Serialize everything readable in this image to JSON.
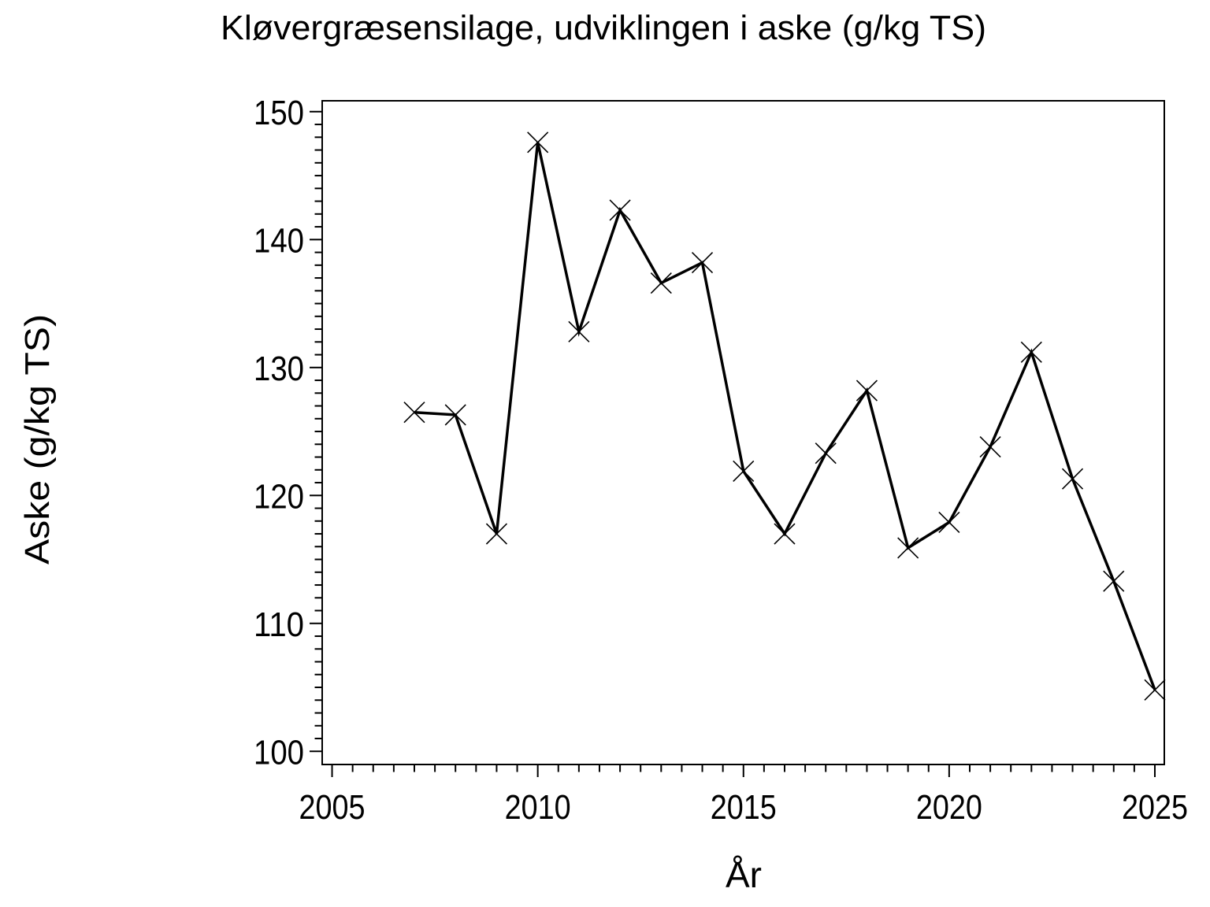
{
  "window": {
    "background": "#ffffff",
    "foreground": "#000000"
  },
  "chart_data": {
    "type": "line",
    "title": "Kløvergræsensilage, udviklingen i aske (g/kg TS)",
    "xlabel": "År",
    "ylabel": "Aske (g/kg TS)",
    "x": [
      2007,
      2008,
      2009,
      2010,
      2011,
      2012,
      2013,
      2014,
      2015,
      2016,
      2017,
      2018,
      2019,
      2020,
      2021,
      2022,
      2023,
      2024,
      2025
    ],
    "series": [
      {
        "name": "Aske (g/kg TS)",
        "values": [
          126.5,
          126.3,
          117.0,
          147.6,
          132.8,
          142.3,
          136.6,
          138.2,
          121.9,
          117.0,
          123.3,
          128.2,
          115.9,
          117.9,
          123.8,
          131.2,
          121.3,
          113.3,
          104.8
        ]
      }
    ],
    "x_axis": {
      "ticks": [
        2005,
        2010,
        2015,
        2020,
        2025
      ],
      "minor_step": 0.5
    },
    "y_axis": {
      "ticks": [
        100,
        110,
        120,
        130,
        140,
        150
      ],
      "minor_step": 1
    },
    "xlim": [
      2004.76,
      2025.23
    ],
    "ylim": [
      98.97,
      150.85
    ],
    "grid": false,
    "legend": "none",
    "marker": "x",
    "line_color": "#000000",
    "marker_color": "#000000",
    "text_color": "#000000",
    "background_color": "#ffffff"
  }
}
